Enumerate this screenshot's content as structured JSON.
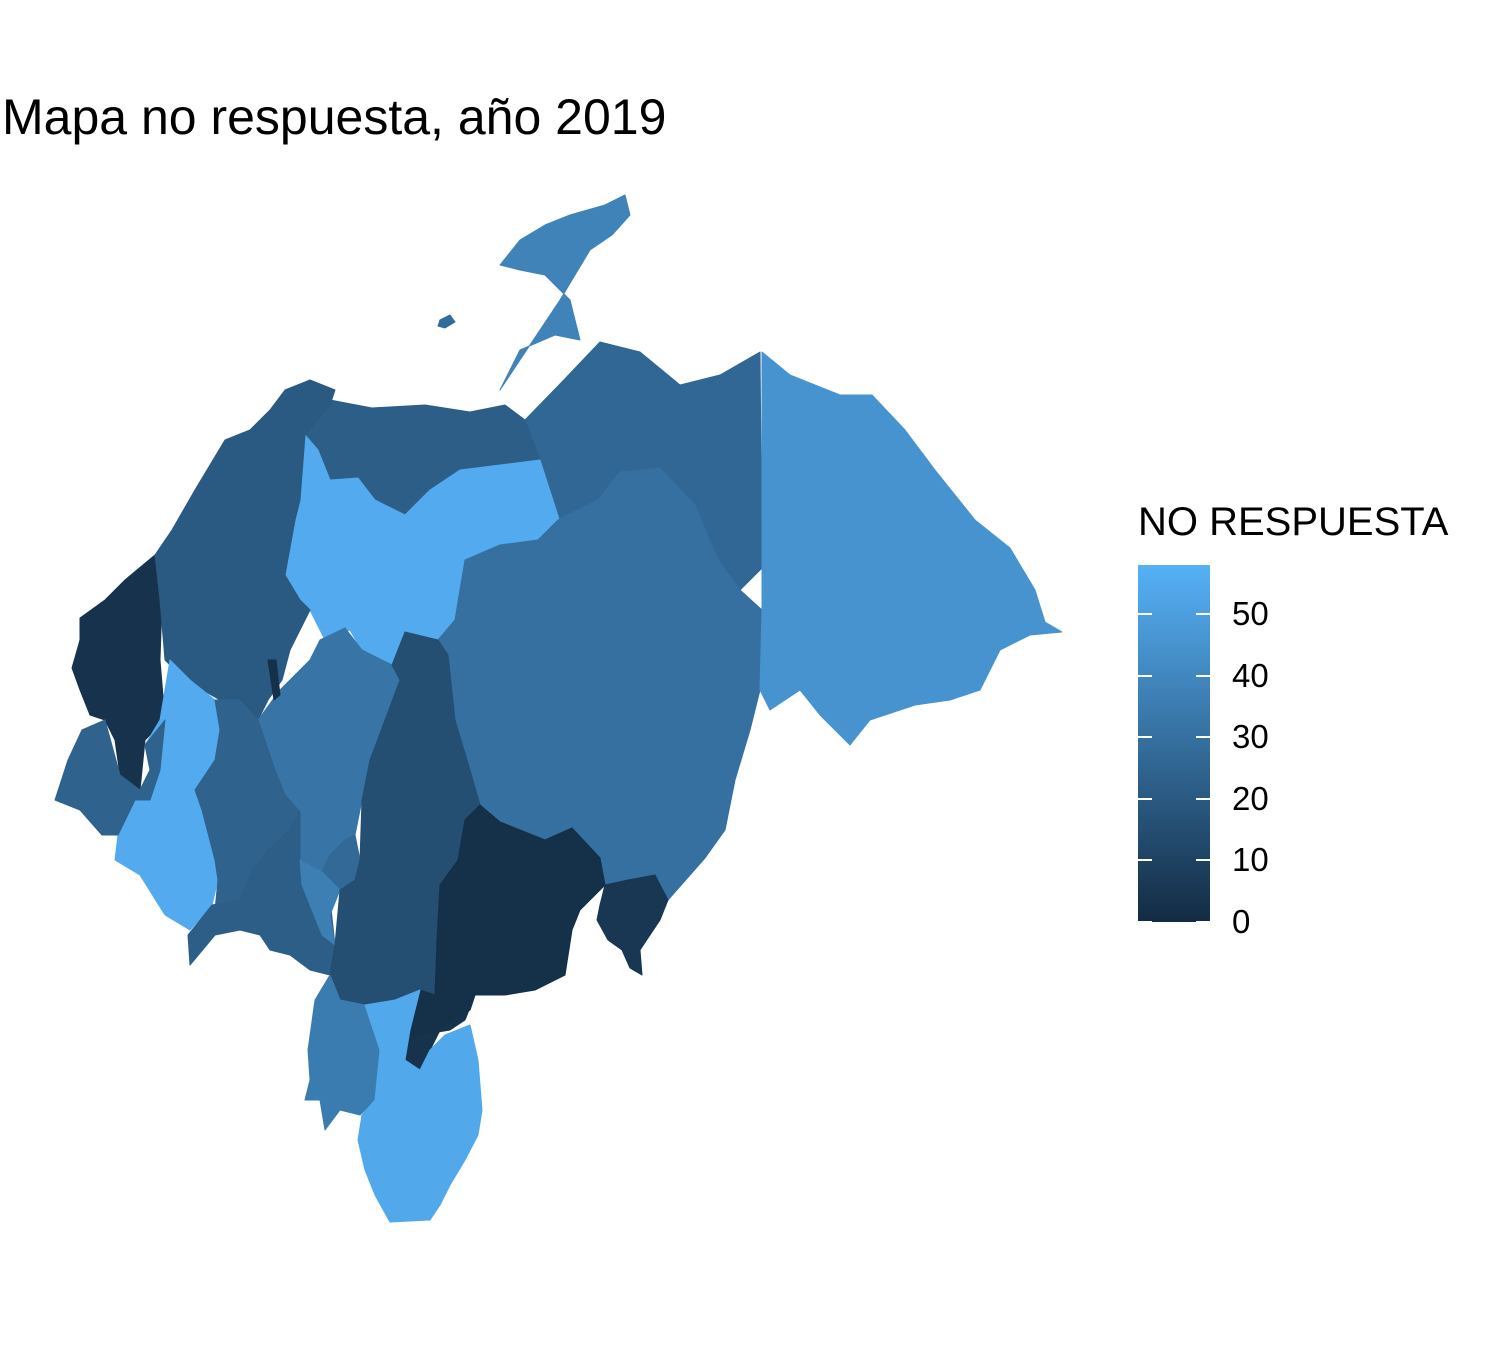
{
  "title": "Mapa no respuesta, año 2019",
  "legend": {
    "title": "NO RESPUESTA",
    "min": 0,
    "max": 58,
    "low_color": "#132B43",
    "high_color": "#56B1F7",
    "ticks": [
      "0",
      "10",
      "20",
      "30",
      "40",
      "50"
    ]
  },
  "chart_data": {
    "type": "choropleth",
    "title": "Mapa no respuesta, año 2019",
    "legend_title": "NO RESPUESTA",
    "scale": [
      0,
      58
    ],
    "regions": [
      {
        "value": 26
      },
      {
        "value": 22
      },
      {
        "value": 38
      },
      {
        "value": 55
      },
      {
        "value": 30
      },
      {
        "value": 45
      },
      {
        "value": 3
      },
      {
        "value": 20
      },
      {
        "value": 55
      },
      {
        "value": 24
      },
      {
        "value": 32
      },
      {
        "value": 2
      },
      {
        "value": 24
      },
      {
        "value": 22
      },
      {
        "value": 27
      },
      {
        "value": 36
      },
      {
        "value": 15
      },
      {
        "value": 2
      },
      {
        "value": 5
      },
      {
        "value": 3
      },
      {
        "value": 35
      },
      {
        "value": 54
      },
      {
        "value": 28
      }
    ]
  }
}
